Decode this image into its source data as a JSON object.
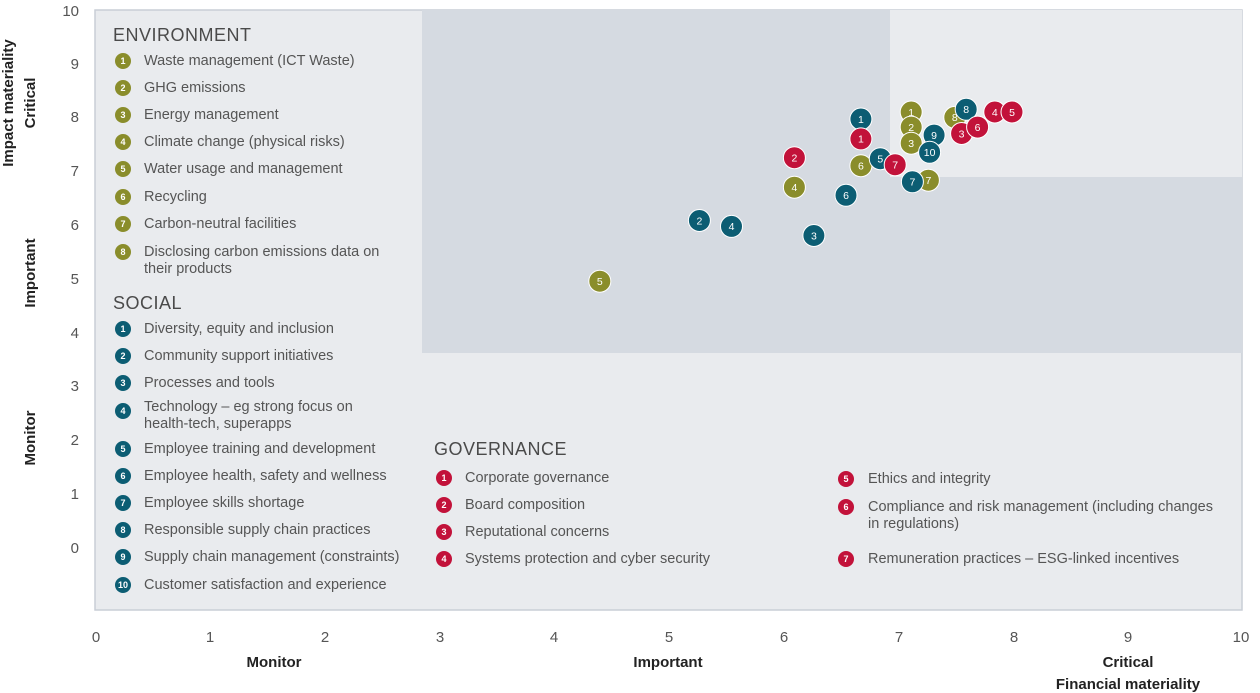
{
  "colors": {
    "environment": "#8a8d2b",
    "social": "#0c5d73",
    "governance": "#c2123a",
    "plot_bg": "#e9ebee",
    "zone_bg": "#d5dae1"
  },
  "chart_data": {
    "type": "scatter",
    "xlabel": [
      "Monitor",
      "Important",
      "Critical",
      "Financial materiality"
    ],
    "ylabel": [
      "Impact materiality",
      "Critical",
      "Important",
      "Monitor"
    ],
    "xlim": [
      0,
      10
    ],
    "ylim": [
      -1.2,
      10
    ],
    "xticks": [
      "0",
      "1",
      "2",
      "3",
      "4",
      "5",
      "6",
      "7",
      "8",
      "9",
      "10"
    ],
    "yticks": [
      "0",
      "1",
      "2",
      "3",
      "4",
      "5",
      "6",
      "7",
      "8",
      "9",
      "10"
    ],
    "grid": false,
    "series": [
      {
        "name": "ENVIRONMENT",
        "color_key": "environment",
        "items": [
          {
            "id": "1",
            "label": "Waste management (ICT Waste)",
            "x": 7.12,
            "y": 8.1
          },
          {
            "id": "2",
            "label": "GHG emissions",
            "x": 7.12,
            "y": 7.82
          },
          {
            "id": "3",
            "label": "Energy management",
            "x": 7.12,
            "y": 7.52
          },
          {
            "id": "4",
            "label": "Climate change (physical risks)",
            "x": 6.1,
            "y": 6.7
          },
          {
            "id": "5",
            "label": "Water usage and management",
            "x": 4.4,
            "y": 4.95
          },
          {
            "id": "6",
            "label": "Recycling",
            "x": 6.68,
            "y": 7.1
          },
          {
            "id": "7",
            "label": "Carbon-neutral facilities",
            "x": 7.27,
            "y": 6.83
          },
          {
            "id": "8",
            "label": "Disclosing carbon emissions data on their products",
            "x": 7.5,
            "y": 8.0
          }
        ]
      },
      {
        "name": "SOCIAL",
        "color_key": "social",
        "items": [
          {
            "id": "1",
            "label": "Diversity, equity and inclusion",
            "x": 6.68,
            "y": 7.97
          },
          {
            "id": "2",
            "label": "Community support initiatives",
            "x": 5.27,
            "y": 6.08
          },
          {
            "id": "3",
            "label": "Processes and tools",
            "x": 6.27,
            "y": 5.8
          },
          {
            "id": "4",
            "label": "Technology – eg strong focus on health-tech, superapps",
            "x": 5.55,
            "y": 5.97
          },
          {
            "id": "5",
            "label": "Employee training and development",
            "x": 6.85,
            "y": 7.23
          },
          {
            "id": "6",
            "label": "Employee health, safety and wellness",
            "x": 6.55,
            "y": 6.55
          },
          {
            "id": "7",
            "label": "Employee skills shortage",
            "x": 7.13,
            "y": 6.8
          },
          {
            "id": "8",
            "label": "Responsible supply chain practices",
            "x": 7.6,
            "y": 8.15
          },
          {
            "id": "9",
            "label": "Supply chain management (constraints)",
            "x": 7.32,
            "y": 7.67
          },
          {
            "id": "10",
            "label": "Customer satisfaction and experience",
            "x": 7.28,
            "y": 7.35
          }
        ]
      },
      {
        "name": "GOVERNANCE",
        "color_key": "governance",
        "items": [
          {
            "id": "1",
            "label": "Corporate governance",
            "x": 6.68,
            "y": 7.6
          },
          {
            "id": "2",
            "label": "Board composition",
            "x": 6.1,
            "y": 7.25
          },
          {
            "id": "3",
            "label": "Reputational concerns",
            "x": 7.56,
            "y": 7.7
          },
          {
            "id": "4",
            "label": "Systems protection and cyber security",
            "x": 7.85,
            "y": 8.1
          },
          {
            "id": "5",
            "label": "Ethics and integrity",
            "x": 8.0,
            "y": 8.1
          },
          {
            "id": "6",
            "label": "Compliance and risk management (including changes in regulations)",
            "x": 7.7,
            "y": 7.82
          },
          {
            "id": "7",
            "label": "Remuneration practices – ESG-linked incentives",
            "x": 6.98,
            "y": 7.12
          }
        ]
      }
    ]
  }
}
